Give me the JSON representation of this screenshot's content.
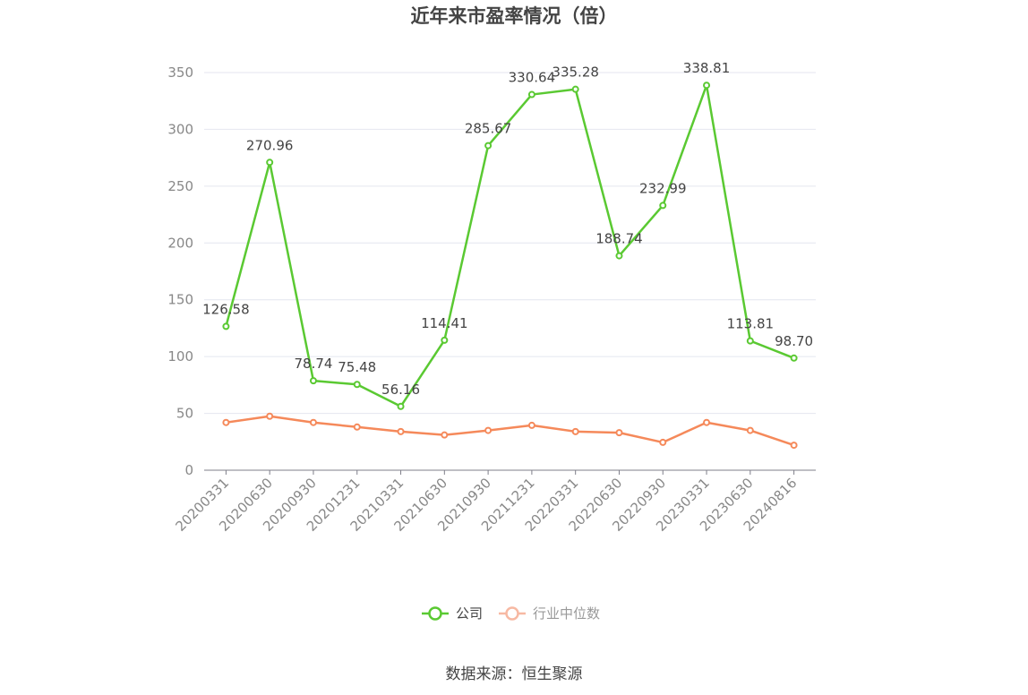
{
  "chart_data": {
    "type": "line",
    "title": "近年来市盈率情况（倍）",
    "categories": [
      "20200331",
      "20200630",
      "20200930",
      "20201231",
      "20210331",
      "20210630",
      "20210930",
      "20211231",
      "20220331",
      "20220630",
      "20220930",
      "20230331",
      "20230630",
      "20240816"
    ],
    "series": [
      {
        "name": "公司",
        "color": "#5ac932",
        "values": [
          126.58,
          270.96,
          78.74,
          75.48,
          56.16,
          114.41,
          285.67,
          330.64,
          335.28,
          188.74,
          232.99,
          338.81,
          113.81,
          98.7
        ],
        "labels": [
          "126.58",
          "270.96",
          "78.74",
          "75.48",
          "56.16",
          "114.41",
          "285.67",
          "330.64",
          "335.28",
          "188.74",
          "232.99",
          "338.81",
          "113.81",
          "98.70"
        ]
      },
      {
        "name": "行业中位数",
        "color": "#f5895a",
        "values": [
          42,
          47.5,
          42,
          38,
          34,
          31,
          35,
          39.5,
          34,
          33,
          24.5,
          42,
          35,
          22
        ]
      }
    ],
    "ylim": [
      0,
      350
    ],
    "yticks": [
      "0",
      "50",
      "100",
      "150",
      "200",
      "250",
      "300",
      "350"
    ],
    "grid": true,
    "legend_position": "bottom-center"
  },
  "source_text": "数据来源：恒生聚源"
}
